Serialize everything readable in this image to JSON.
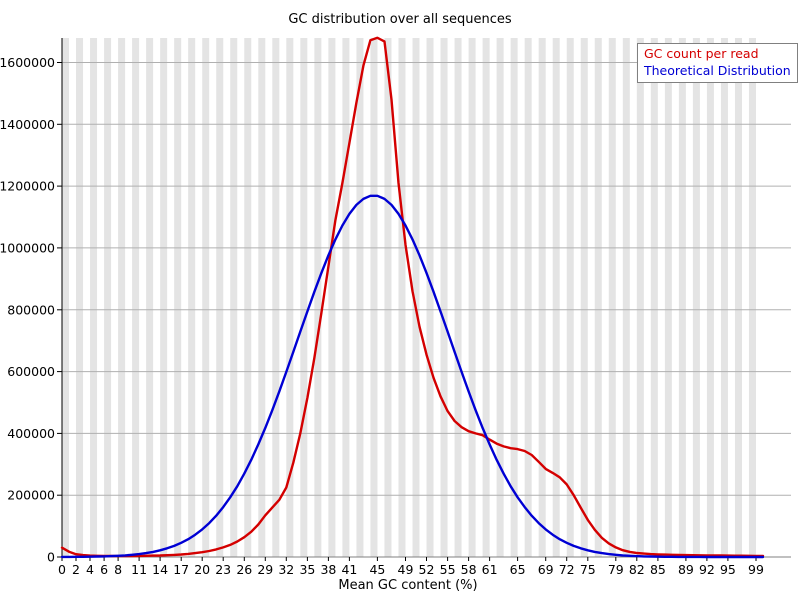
{
  "chart_data": {
    "type": "line",
    "title": "GC distribution over all sequences",
    "xlabel": "Mean GC content (%)",
    "ylabel": "",
    "x_start": 0,
    "x_end": 100,
    "ylim": [
      0,
      1680000
    ],
    "y_ticks": [
      0,
      200000,
      400000,
      600000,
      800000,
      1000000,
      1200000,
      1400000,
      1600000
    ],
    "x_tick_labels": [
      0,
      2,
      4,
      6,
      8,
      11,
      14,
      17,
      20,
      23,
      26,
      29,
      32,
      35,
      38,
      41,
      45,
      49,
      52,
      55,
      58,
      61,
      65,
      69,
      72,
      75,
      79,
      82,
      85,
      89,
      92,
      95,
      99
    ],
    "grid": "horizontal",
    "legend_position": "top-right",
    "stripe_color": "#e4e4e4",
    "grid_color": "#b0b0b0",
    "axis_color": "#000000",
    "x_axis_line_color": "#808080",
    "legend_border_color": "#808080",
    "series": [
      {
        "name": "GC count per read",
        "color": "#d40000",
        "values": [
          30000,
          17000,
          9000,
          6000,
          4500,
          4000,
          3500,
          3200,
          3000,
          3000,
          3200,
          3500,
          4000,
          4500,
          5000,
          5800,
          6800,
          8200,
          10000,
          12500,
          15500,
          19500,
          24500,
          31000,
          39000,
          50000,
          64000,
          82000,
          105000,
          135000,
          160000,
          185000,
          225000,
          305000,
          400000,
          515000,
          645000,
          790000,
          940000,
          1090000,
          1210000,
          1340000,
          1470000,
          1590000,
          1672000,
          1680000,
          1668000,
          1480000,
          1210000,
          1010000,
          860000,
          745000,
          655000,
          580000,
          520000,
          472000,
          440000,
          420000,
          407000,
          400000,
          394000,
          380000,
          367000,
          358000,
          352000,
          349000,
          343000,
          330000,
          308000,
          285000,
          272000,
          258000,
          235000,
          200000,
          160000,
          120000,
          88000,
          62000,
          44000,
          31000,
          22000,
          16500,
          13000,
          11000,
          9500,
          8500,
          7800,
          7200,
          6700,
          6200,
          5800,
          5400,
          5100,
          4900,
          4700,
          4500,
          4300,
          4100,
          3900,
          3700,
          3600
        ]
      },
      {
        "name": "Theoretical Distribution",
        "color": "#0000d4",
        "values": [
          200,
          400,
          500,
          700,
          1000,
          1500,
          2000,
          2800,
          3900,
          5300,
          7100,
          9500,
          12600,
          16600,
          21700,
          28100,
          36000,
          45800,
          57600,
          72100,
          89300,
          109700,
          133600,
          161300,
          193200,
          229200,
          269800,
          314800,
          364200,
          417700,
          475100,
          535700,
          598800,
          663700,
          729400,
          794600,
          858400,
          919300,
          976200,
          1027700,
          1072700,
          1110200,
          1139100,
          1158800,
          1168700,
          1168700,
          1158800,
          1139100,
          1110200,
          1072700,
          1027700,
          976200,
          919300,
          858400,
          794700,
          729400,
          663700,
          598800,
          535700,
          475100,
          417700,
          364200,
          314800,
          269900,
          229200,
          193200,
          161300,
          133500,
          109700,
          89200,
          72100,
          57600,
          45800,
          36000,
          28100,
          21700,
          16600,
          12600,
          9500,
          7100,
          5300,
          3900,
          2800,
          2000,
          1500,
          1000,
          700,
          500,
          400,
          300,
          200,
          200,
          100,
          100,
          100,
          0,
          0,
          0,
          0,
          0,
          0
        ]
      }
    ]
  }
}
